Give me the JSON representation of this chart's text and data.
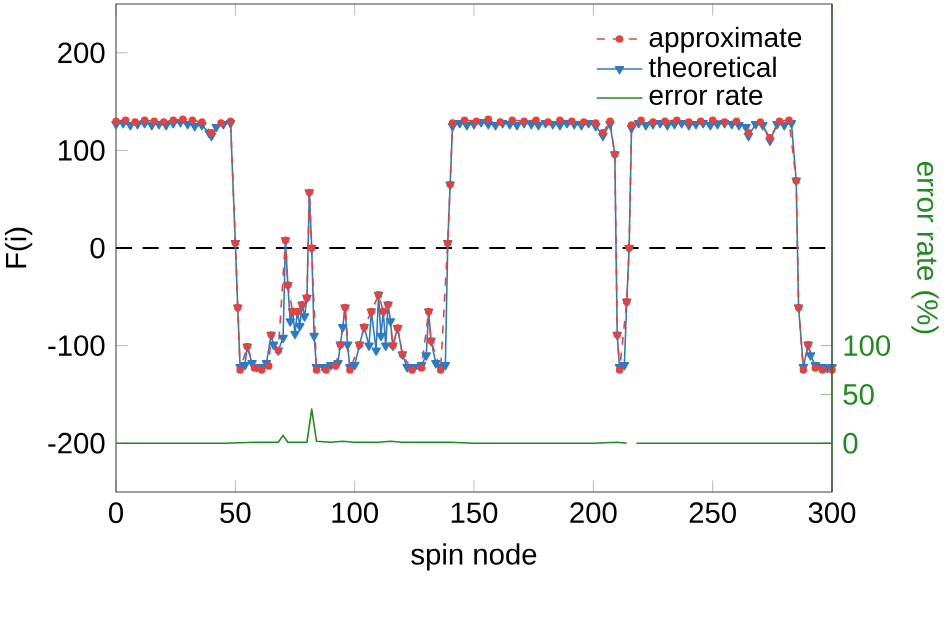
{
  "chart_data": {
    "type": "line",
    "xlabel": "spin node",
    "ylabel": "F(i)",
    "y2label": "error rate (%)",
    "xlim": [
      0,
      300
    ],
    "xticks": [
      0,
      50,
      100,
      150,
      200,
      250,
      300
    ],
    "ylim": [
      -250,
      250
    ],
    "yticks": [
      -200,
      -100,
      0,
      100,
      200
    ],
    "y2lim": [
      -50,
      450
    ],
    "y2ticks": [
      0,
      50,
      100
    ],
    "legend": "top right",
    "ref_lines": [
      {
        "axis": "y",
        "value": 0,
        "color": "#000000",
        "line_style": "dashed"
      }
    ],
    "series": [
      {
        "name": "approximate",
        "color": "#e8413c",
        "marker": "circle",
        "line_style": "dashed",
        "x": [
          0,
          4,
          8,
          12,
          16,
          20,
          24,
          28,
          32,
          36,
          40,
          44,
          48,
          50,
          51,
          52,
          55,
          58,
          61,
          64,
          65,
          68,
          71,
          72,
          74,
          76,
          78,
          80,
          81,
          82,
          84,
          88,
          92,
          94,
          96,
          98,
          102,
          104,
          107,
          110,
          112,
          114,
          116,
          118,
          120,
          124,
          128,
          131,
          132,
          136,
          139,
          140,
          141,
          146,
          151,
          156,
          161,
          166,
          171,
          176,
          181,
          186,
          191,
          196,
          201,
          204,
          207,
          209,
          210,
          211,
          214,
          215,
          216,
          220,
          225,
          230,
          235,
          240,
          245,
          250,
          255,
          260,
          265,
          270,
          274,
          278,
          282,
          285,
          286,
          288,
          290,
          293,
          296,
          300
        ],
        "values": [
          130,
          131,
          129,
          131,
          130,
          129,
          131,
          132,
          131,
          129,
          118,
          128,
          130,
          5,
          -61,
          -125,
          -101,
          -123,
          -125,
          -121,
          -89,
          -105,
          8,
          -38,
          -65,
          -65,
          -58,
          -51,
          57,
          0,
          -125,
          -125,
          -121,
          -99,
          -61,
          -125,
          -99,
          -81,
          -65,
          -48,
          -65,
          -58,
          -100,
          -82,
          -109,
          -125,
          -123,
          -65,
          -95,
          -125,
          5,
          65,
          128,
          131,
          130,
          132,
          129,
          131,
          130,
          131,
          129,
          131,
          130,
          129,
          128,
          118,
          130,
          96,
          -89,
          -125,
          -55,
          0,
          126,
          131,
          129,
          130,
          131,
          129,
          130,
          131,
          129,
          130,
          118,
          129,
          113,
          130,
          131,
          69,
          -61,
          -125,
          -99,
          -123,
          -125,
          -125
        ]
      },
      {
        "name": "theoretical",
        "color": "#2e7bc4",
        "marker": "triangle",
        "line_style": "solid",
        "x": [
          0,
          3,
          6,
          9,
          12,
          15,
          18,
          21,
          24,
          27,
          30,
          33,
          36,
          39,
          40,
          42,
          45,
          48,
          50,
          51,
          52,
          54,
          55,
          57,
          59,
          61,
          63,
          65,
          66,
          68,
          70,
          71,
          72,
          73,
          74,
          75,
          76,
          77,
          78,
          79,
          80,
          81,
          82,
          83,
          84,
          87,
          90,
          93,
          94,
          95,
          96,
          97,
          98,
          100,
          102,
          104,
          106,
          107,
          109,
          110,
          111,
          112,
          113,
          114,
          115,
          116,
          118,
          120,
          122,
          125,
          128,
          130,
          131,
          132,
          134,
          136,
          138,
          139,
          140,
          141,
          144,
          147,
          150,
          153,
          156,
          159,
          162,
          165,
          168,
          171,
          174,
          177,
          180,
          183,
          186,
          189,
          192,
          195,
          198,
          201,
          204,
          207,
          209,
          210,
          211,
          213,
          214,
          215,
          216,
          219,
          222,
          225,
          228,
          231,
          234,
          237,
          240,
          243,
          246,
          249,
          252,
          255,
          258,
          261,
          264,
          265,
          268,
          271,
          274,
          277,
          280,
          283,
          285,
          286,
          288,
          290,
          291,
          293,
          296,
          298,
          300
        ],
        "values": [
          127,
          128,
          126,
          127,
          128,
          126,
          127,
          126,
          128,
          129,
          127,
          125,
          126,
          118,
          115,
          124,
          127,
          128,
          5,
          -61,
          -122,
          -120,
          -101,
          -118,
          -122,
          -122,
          -118,
          -89,
          -99,
          -105,
          -92,
          8,
          -38,
          -75,
          -65,
          -88,
          -65,
          -80,
          -58,
          -70,
          -51,
          57,
          0,
          -90,
          -122,
          -122,
          -120,
          -118,
          -99,
          -81,
          -61,
          -99,
          -122,
          -120,
          -99,
          -81,
          -100,
          -65,
          -105,
          -48,
          -90,
          -65,
          -100,
          -58,
          -75,
          -100,
          -82,
          -109,
          -122,
          -122,
          -120,
          -110,
          -65,
          -95,
          -118,
          -122,
          -120,
          5,
          65,
          125,
          128,
          126,
          127,
          129,
          127,
          126,
          128,
          127,
          126,
          128,
          127,
          126,
          128,
          127,
          126,
          128,
          127,
          126,
          128,
          125,
          115,
          127,
          96,
          -89,
          -122,
          -120,
          -55,
          0,
          123,
          128,
          126,
          127,
          128,
          126,
          127,
          128,
          126,
          127,
          128,
          126,
          127,
          128,
          127,
          126,
          124,
          115,
          127,
          126,
          110,
          127,
          126,
          128,
          69,
          -61,
          -122,
          -99,
          -110,
          -120,
          -122,
          -123,
          -122
        ]
      },
      {
        "name": "error rate",
        "color": "#1f8a1f",
        "marker": "none",
        "line_style": "solid",
        "axis": "y2",
        "x": [
          0,
          20,
          45,
          60,
          68,
          70,
          72,
          80,
          82,
          84,
          90,
          95,
          100,
          110,
          115,
          120,
          130,
          140,
          150,
          200,
          210,
          214,
          216,
          218,
          250,
          300
        ],
        "values": [
          0,
          0,
          0,
          1,
          1,
          8,
          1,
          1,
          35,
          2,
          1,
          2,
          1,
          1,
          2,
          1,
          1,
          1,
          0,
          0,
          1,
          0,
          null,
          0,
          0,
          0
        ]
      }
    ]
  }
}
